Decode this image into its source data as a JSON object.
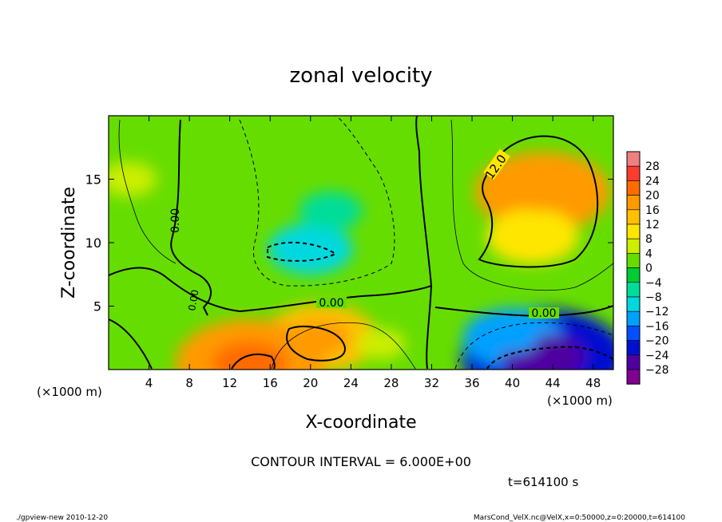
{
  "chart_data": {
    "type": "heatmap",
    "title": "zonal velocity",
    "xlabel": "X-coordinate",
    "ylabel": "Z-coordinate",
    "x_unit_label": "(×1000 m)",
    "y_unit_label": "(×1000 m)",
    "xlim": [
      0,
      50
    ],
    "ylim": [
      0,
      20
    ],
    "x_ticks": [
      "4",
      "8",
      "12",
      "16",
      "20",
      "24",
      "28",
      "32",
      "36",
      "40",
      "44",
      "48"
    ],
    "y_ticks": [
      "5",
      "10",
      "15"
    ],
    "colorbar_levels": [
      "28",
      "24",
      "20",
      "16",
      "12",
      "8",
      "4",
      "0",
      "−4",
      "−8",
      "−12",
      "−16",
      "−20",
      "−24",
      "−28"
    ],
    "colorbar_colors": [
      "#f08080",
      "#ff3b30",
      "#ff6a00",
      "#ff9a00",
      "#ffc000",
      "#ffe600",
      "#ccee00",
      "#66dd00",
      "#00cc33",
      "#00dd99",
      "#00d8e0",
      "#00a0ff",
      "#0050ff",
      "#0010d0",
      "#5000a0",
      "#800090"
    ],
    "contour_labels": [
      "0.00",
      "0.00",
      "0.00",
      "0.00",
      "12.0"
    ],
    "contour_interval_text": "CONTOUR INTERVAL = 6.000E+00",
    "time_text": "t=614100 s",
    "footer_left": "./gpview-new  2010-12-20",
    "footer_right": "MarsCond_VelX.nc@VelX,x=0:50000,z=0:20000,t=614100",
    "features": [
      {
        "x": 43,
        "z": 14,
        "value": 17
      },
      {
        "x": 42,
        "z": 10.5,
        "value": 11
      },
      {
        "x": 43,
        "z": 1,
        "value": -21
      },
      {
        "x": 40,
        "z": 2.5,
        "value": -12
      },
      {
        "x": 20,
        "z": 9.5,
        "value": -10
      },
      {
        "x": 22,
        "z": 12.5,
        "value": -7
      },
      {
        "x": 21,
        "z": 2.5,
        "value": 14
      },
      {
        "x": 14,
        "z": 0.5,
        "value": 19
      },
      {
        "x": 2,
        "z": 15,
        "value": 6
      },
      {
        "x": 3,
        "z": 5,
        "value": 2
      },
      {
        "x": 31,
        "z": 12,
        "value": 1
      },
      {
        "x": 27,
        "z": 2,
        "value": 5
      }
    ]
  }
}
